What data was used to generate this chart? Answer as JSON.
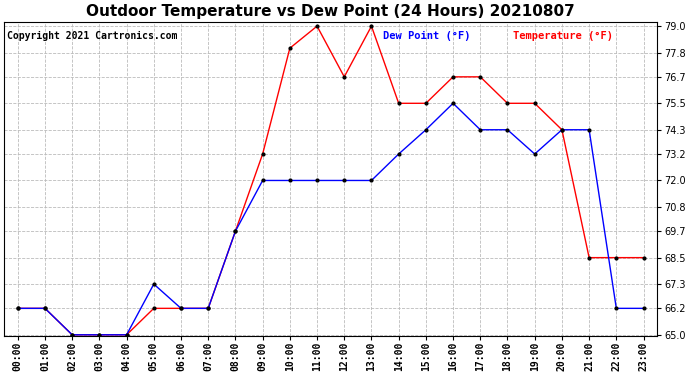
{
  "title": "Outdoor Temperature vs Dew Point (24 Hours) 20210807",
  "copyright": "Copyright 2021 Cartronics.com",
  "legend_dew": "Dew Point (°F)",
  "legend_temp": "Temperature (°F)",
  "x_labels": [
    "00:00",
    "01:00",
    "02:00",
    "03:00",
    "04:00",
    "05:00",
    "06:00",
    "07:00",
    "08:00",
    "09:00",
    "10:00",
    "11:00",
    "12:00",
    "13:00",
    "14:00",
    "15:00",
    "16:00",
    "17:00",
    "18:00",
    "19:00",
    "20:00",
    "21:00",
    "22:00",
    "23:00"
  ],
  "temperature": [
    66.2,
    66.2,
    65.0,
    65.0,
    65.0,
    66.2,
    66.2,
    66.2,
    69.7,
    73.2,
    78.0,
    79.0,
    76.7,
    79.0,
    75.5,
    75.5,
    76.7,
    76.7,
    75.5,
    75.5,
    74.3,
    68.5,
    68.5,
    68.5
  ],
  "dew_point": [
    66.2,
    66.2,
    65.0,
    65.0,
    65.0,
    67.3,
    66.2,
    66.2,
    69.7,
    72.0,
    72.0,
    72.0,
    72.0,
    72.0,
    73.2,
    74.3,
    75.5,
    74.3,
    74.3,
    73.2,
    74.3,
    74.3,
    66.2,
    66.2
  ],
  "ylim": [
    65.0,
    79.0
  ],
  "yticks": [
    65.0,
    66.2,
    67.3,
    68.5,
    69.7,
    70.8,
    72.0,
    73.2,
    74.3,
    75.5,
    76.7,
    77.8,
    79.0
  ],
  "temp_color": "#ff0000",
  "dew_color": "#0000ff",
  "marker_color": "#000000",
  "background_color": "#ffffff",
  "grid_color": "#bbbbbb",
  "title_fontsize": 11,
  "tick_fontsize": 7,
  "copyright_fontsize": 7,
  "legend_fontsize": 7.5
}
